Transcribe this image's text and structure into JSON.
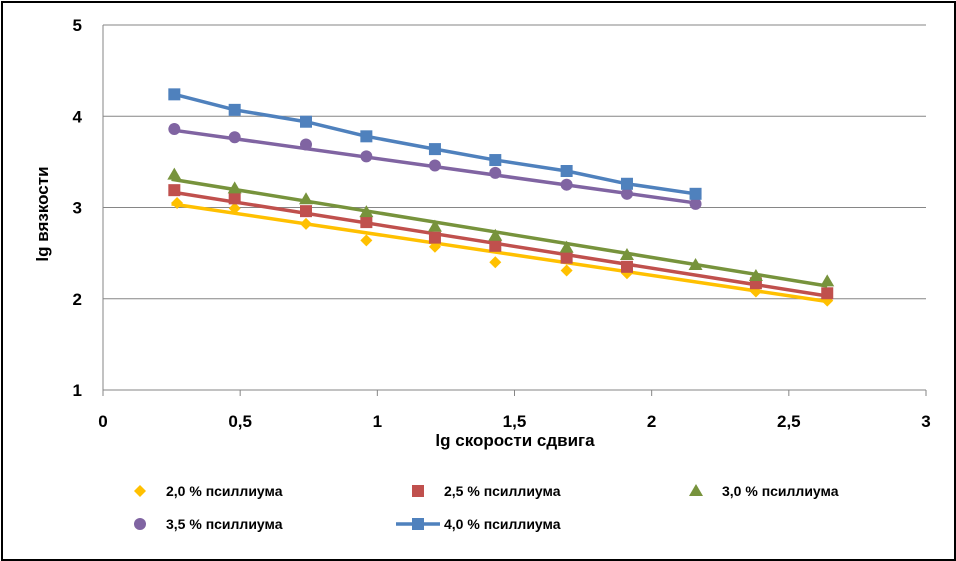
{
  "chart_data": {
    "type": "scatter",
    "xlabel": "lg скорости сдвига",
    "ylabel": "lg вязкости",
    "xlim": [
      0,
      3
    ],
    "ylim": [
      1,
      5
    ],
    "x_ticks": [
      "0",
      "0,5",
      "1",
      "1,5",
      "2",
      "2,5",
      "3"
    ],
    "y_ticks": [
      "1",
      "2",
      "3",
      "4",
      "5"
    ],
    "grid": "horizontal",
    "legend_position": "bottom",
    "series": [
      {
        "name": "2,0 % псиллиума",
        "marker": "diamond",
        "color": "#FFC000",
        "line": "trend",
        "x": [
          0.27,
          0.48,
          0.74,
          0.96,
          1.21,
          1.43,
          1.69,
          1.91,
          2.38,
          2.64
        ],
        "y": [
          3.05,
          2.99,
          2.82,
          2.64,
          2.57,
          2.4,
          2.31,
          2.28,
          2.08,
          1.98
        ],
        "trend": [
          [
            0.25,
            3.04
          ],
          [
            2.64,
            1.97
          ]
        ]
      },
      {
        "name": "2,5 % псиллиума",
        "marker": "square",
        "color": "#C0504D",
        "line": "trend",
        "x": [
          0.26,
          0.48,
          0.74,
          0.96,
          1.21,
          1.43,
          1.69,
          1.91,
          2.38,
          2.64
        ],
        "y": [
          3.19,
          3.1,
          2.96,
          2.84,
          2.67,
          2.58,
          2.45,
          2.35,
          2.17,
          2.06
        ],
        "trend": [
          [
            0.25,
            3.17
          ],
          [
            2.64,
            2.03
          ]
        ]
      },
      {
        "name": "3,0 % псиллиума",
        "marker": "triangle",
        "color": "#77933C",
        "line": "trend",
        "x": [
          0.26,
          0.48,
          0.74,
          0.96,
          1.21,
          1.43,
          1.69,
          1.91,
          2.16,
          2.38,
          2.64
        ],
        "y": [
          3.36,
          3.21,
          3.09,
          2.95,
          2.79,
          2.69,
          2.56,
          2.48,
          2.37,
          2.25,
          2.19
        ],
        "trend": [
          [
            0.25,
            3.31
          ],
          [
            2.64,
            2.14
          ]
        ]
      },
      {
        "name": "3,5 % псиллиума",
        "marker": "circle",
        "color": "#8064A2",
        "line": "trend",
        "x": [
          0.26,
          0.48,
          0.74,
          0.96,
          1.21,
          1.43,
          1.69,
          1.91,
          2.16
        ],
        "y": [
          3.86,
          3.77,
          3.69,
          3.56,
          3.46,
          3.38,
          3.25,
          3.15,
          3.04
        ],
        "trend": [
          [
            0.25,
            3.85
          ],
          [
            2.16,
            3.05
          ]
        ]
      },
      {
        "name": "4,0 % псиллиума",
        "marker": "square",
        "color": "#4F81BD",
        "line": "connected",
        "x": [
          0.26,
          0.48,
          0.74,
          0.96,
          1.21,
          1.43,
          1.69,
          1.91,
          2.16
        ],
        "y": [
          4.24,
          4.07,
          3.94,
          3.78,
          3.64,
          3.52,
          3.4,
          3.26,
          3.15
        ],
        "trend": [
          [
            0.25,
            4.21
          ],
          [
            2.16,
            3.13
          ]
        ]
      }
    ]
  }
}
